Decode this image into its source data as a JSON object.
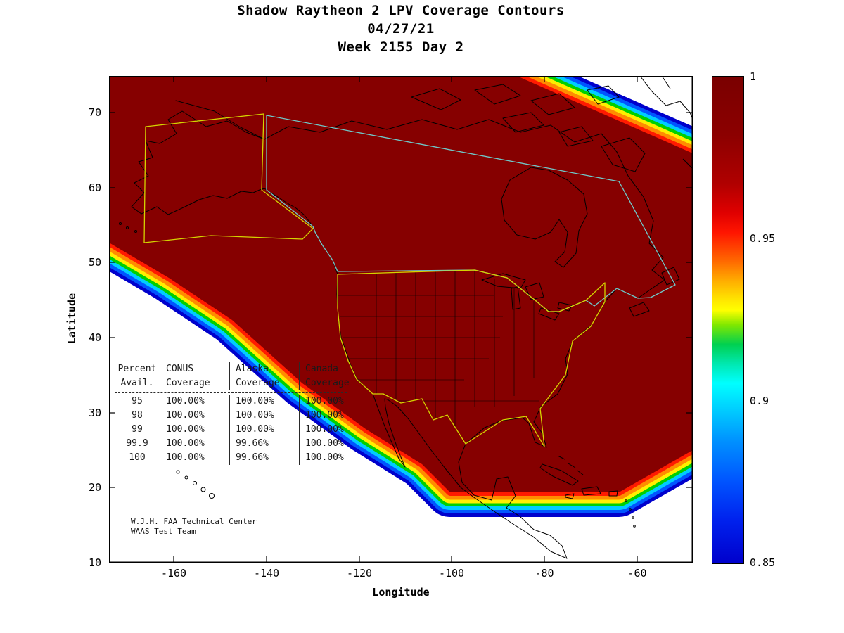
{
  "figure": {
    "title_line1": "Shadow Raytheon 2 LPV Coverage Contours",
    "title_line2": "04/27/21",
    "title_line3": "Week 2155 Day 2"
  },
  "axes": {
    "xlabel": "Longitude",
    "ylabel": "Latitude",
    "x_ticks": [
      "-160",
      "-140",
      "-120",
      "-100",
      "-80",
      "-60"
    ],
    "y_ticks": [
      "70",
      "60",
      "50",
      "40",
      "30",
      "20",
      "10"
    ]
  },
  "colorbar": {
    "tick_labels": [
      "1",
      "0.95",
      "0.9",
      "0.85"
    ]
  },
  "table": {
    "headers_line1": [
      "Percent",
      "CONUS",
      "Alaska",
      "Canada"
    ],
    "headers_line2": [
      "Avail.",
      "Coverage",
      "Coverage",
      "Coverage"
    ],
    "rows": [
      [
        "95",
        "100.00%",
        "100.00%",
        "100.00%"
      ],
      [
        "98",
        "100.00%",
        "100.00%",
        "100.00%"
      ],
      [
        "99",
        "100.00%",
        "100.00%",
        "100.00%"
      ],
      [
        "99.9",
        "100.00%",
        "99.66%",
        "100.00%"
      ],
      [
        "100",
        "100.00%",
        "99.66%",
        "100.00%"
      ]
    ]
  },
  "attribution": {
    "line1": "W.J.H. FAA Technical Center",
    "line2": "WAAS Test Team"
  },
  "colors": {
    "coverage_full": "#860000",
    "service_boundary_conus_alaska": "#d4d400",
    "service_boundary_canada": "#6fc9c9"
  },
  "chart_data": {
    "type": "heatmap",
    "subtype": "filled-contour-coverage-map",
    "title": "Shadow Raytheon 2 LPV Coverage Contours",
    "date": "04/27/21",
    "gps_week": "Week 2155 Day 2",
    "xlabel": "Longitude",
    "ylabel": "Latitude",
    "xlim": [
      -175,
      -48
    ],
    "ylim": [
      10,
      75
    ],
    "x_ticks": [
      -160,
      -140,
      -120,
      -100,
      -80,
      -60
    ],
    "y_ticks": [
      10,
      20,
      30,
      40,
      50,
      60,
      70
    ],
    "colorbar": {
      "range": [
        0.85,
        1.0
      ],
      "ticks": [
        1,
        0.95,
        0.9,
        0.85
      ],
      "colormap": "jet"
    },
    "series_note": "LPV coverage fraction: solid dark-red region (1.0) covers nearly all of North America (CONUS, Alaska, Canada); rainbow contour bands 0.85-1.0 along the southwest Pacific edge and northeast Atlantic edge of the coverage area",
    "coverage_table": {
      "columns": [
        "Percent Avail.",
        "CONUS Coverage",
        "Alaska Coverage",
        "Canada Coverage"
      ],
      "rows": [
        [
          "95",
          "100.00%",
          "100.00%",
          "100.00%"
        ],
        [
          "98",
          "100.00%",
          "100.00%",
          "100.00%"
        ],
        [
          "99",
          "100.00%",
          "100.00%",
          "100.00%"
        ],
        [
          "99.9",
          "100.00%",
          "99.66%",
          "100.00%"
        ],
        [
          "100",
          "100.00%",
          "99.66%",
          "100.00%"
        ]
      ]
    }
  }
}
